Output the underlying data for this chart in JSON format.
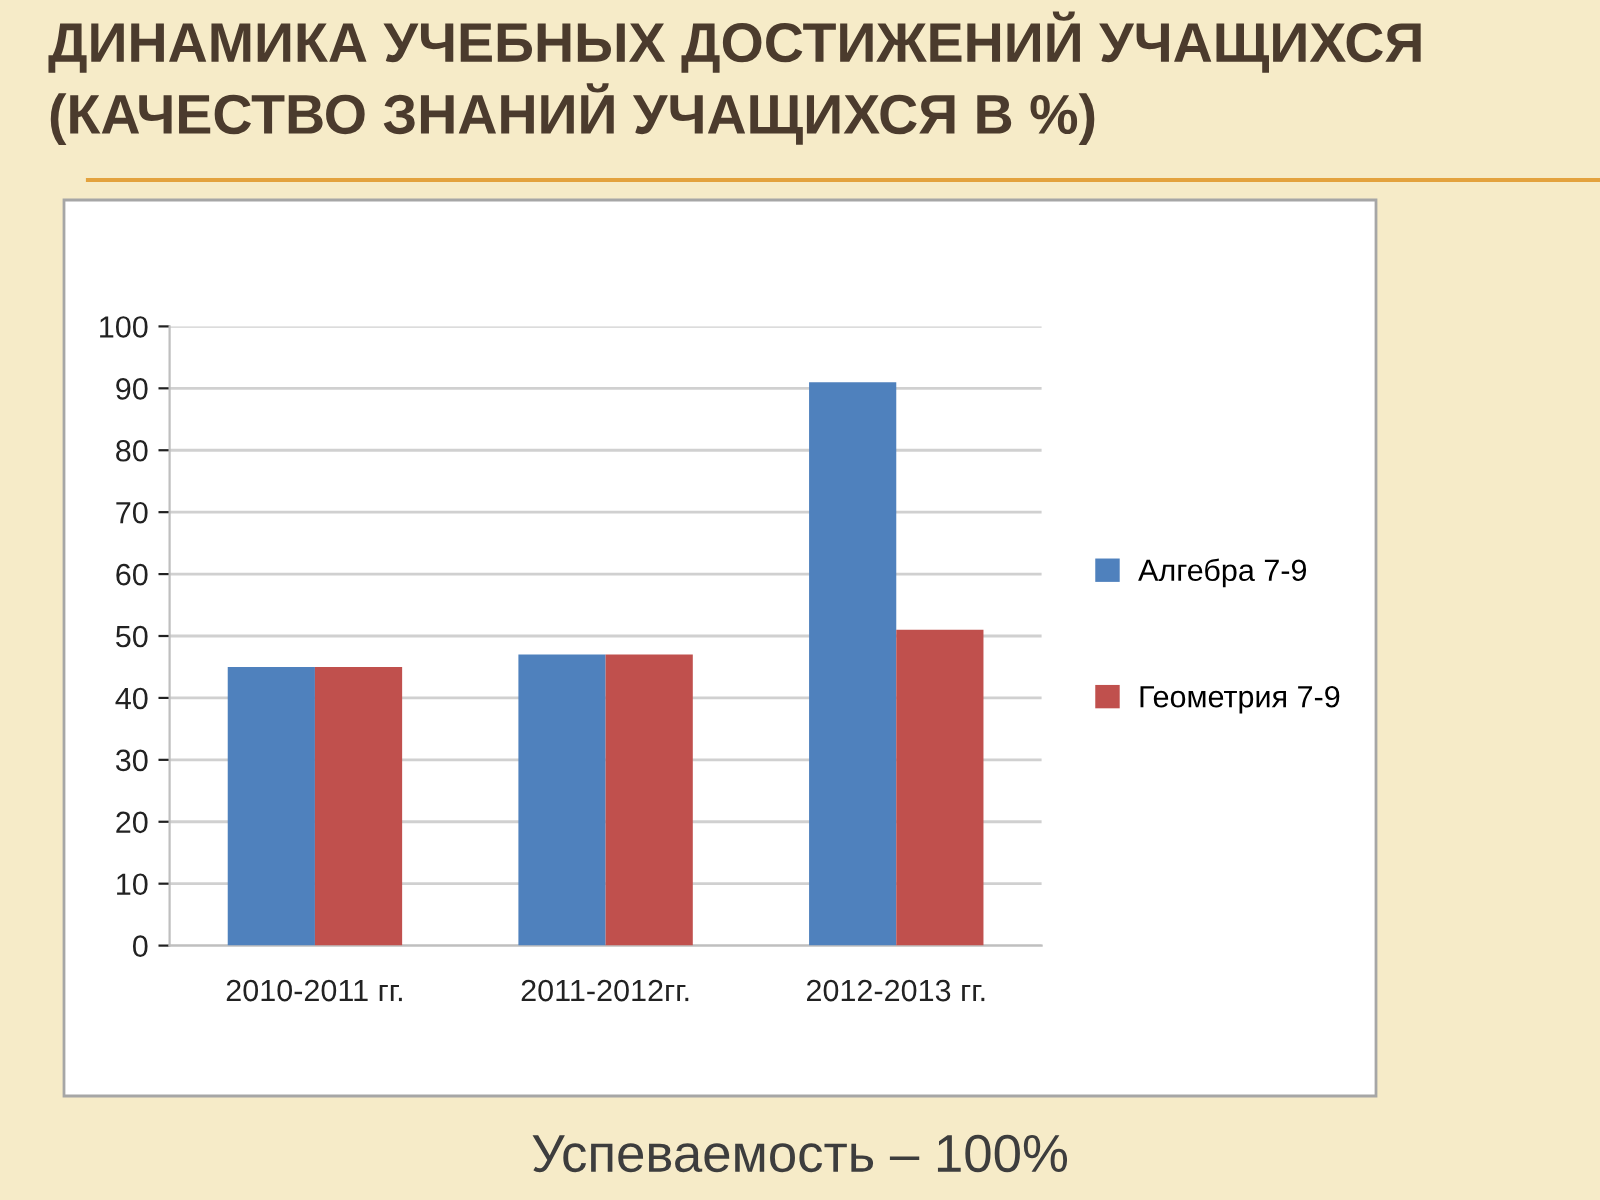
{
  "chart_data": {
    "type": "bar",
    "title": "ДИНАМИКА УЧЕБНЫХ ДОСТИЖЕНИЙ УЧАЩИХСЯ (КАЧЕСТВО ЗНАНИЙ УЧАЩИХСЯ В %)",
    "categories": [
      "2010-2011 гг.",
      "2011-2012гг.",
      "2012-2013 гг."
    ],
    "series": [
      {
        "name": "Алгебра 7-9",
        "color": "#4f81bd",
        "values": [
          45,
          47,
          91
        ]
      },
      {
        "name": "Геометрия 7-9",
        "color": "#c0504d",
        "values": [
          45,
          47,
          51
        ]
      }
    ],
    "ylim": [
      0,
      100
    ],
    "yticks": [
      0,
      10,
      20,
      30,
      40,
      50,
      60,
      70,
      80,
      90,
      100
    ],
    "grid": "y",
    "legend": "right",
    "annotations": [
      "Успеваемость – 100%"
    ]
  }
}
